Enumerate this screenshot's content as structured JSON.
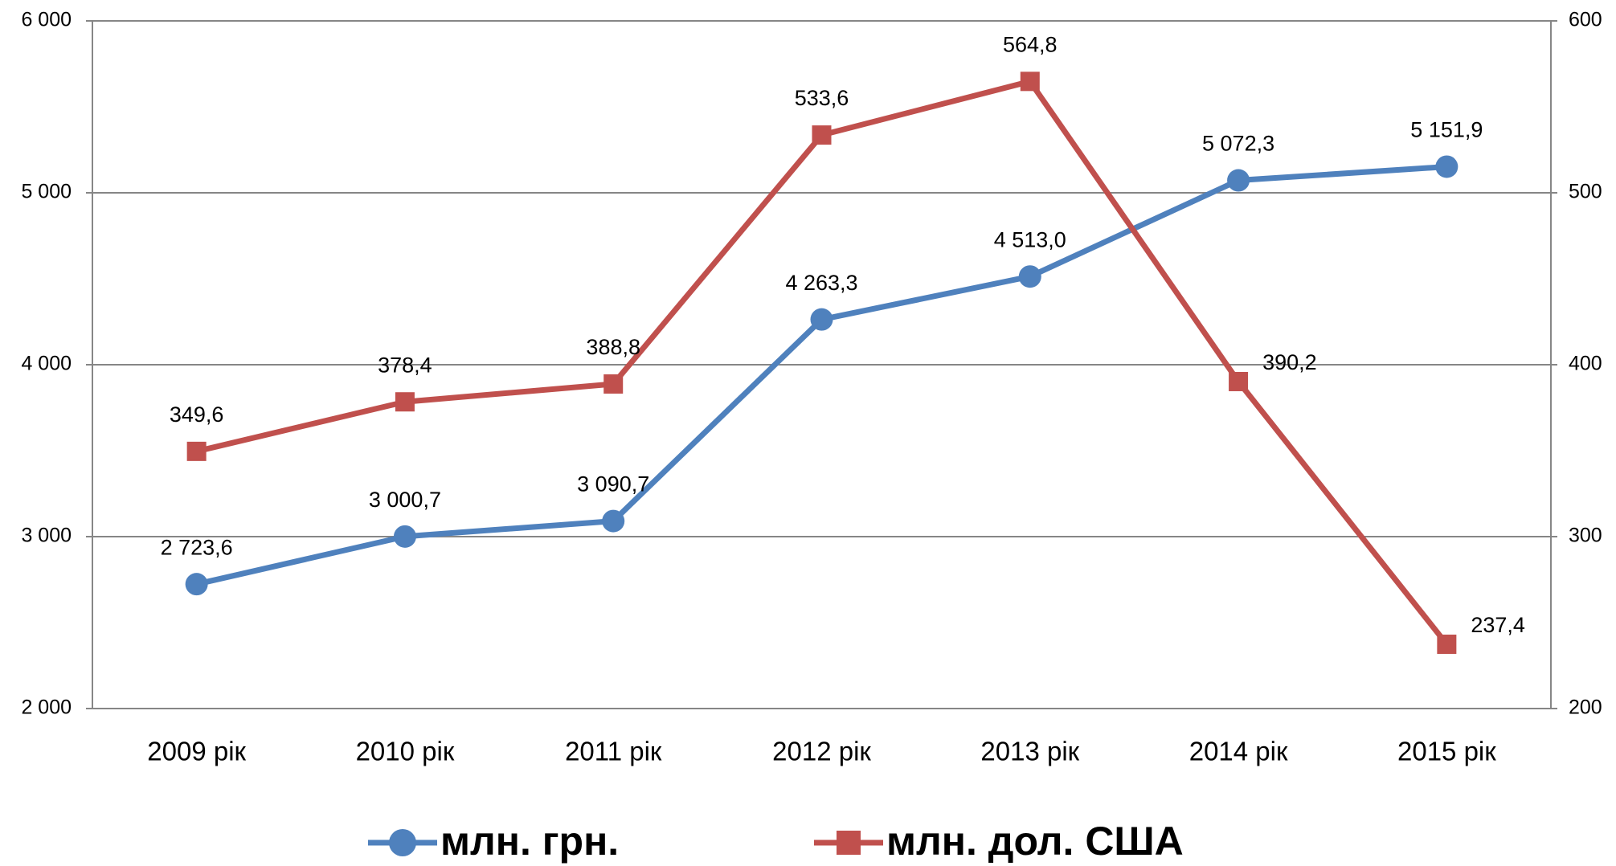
{
  "chart_data": {
    "type": "line",
    "categories": [
      "2009 рік",
      "2010 рік",
      "2011 рік",
      "2012 рік",
      "2013 рік",
      "2014 рік",
      "2015 рік"
    ],
    "series": [
      {
        "name": "млн. грн.",
        "color": "#4f81bd",
        "marker": "circle",
        "values": [
          2723.6,
          3000.7,
          3090.7,
          4263.3,
          4513.0,
          5072.3,
          5151.9
        ],
        "value_labels": [
          "2 723,6",
          "3 000,7",
          "3 090,7",
          "4 263,3",
          "4 513,0",
          "5 072,3",
          "5 151,9"
        ]
      },
      {
        "name": "млн. дол. США",
        "color": "#c0504d",
        "marker": "square",
        "axis": "y2",
        "values": [
          349.6,
          378.4,
          388.8,
          533.6,
          564.8,
          390.2,
          237.4
        ],
        "value_labels": [
          "349,6",
          "378,4",
          "388,8",
          "533,6",
          "564,8",
          "390,2",
          "237,4"
        ]
      }
    ],
    "ylim": [
      2000,
      6000
    ],
    "yticks": [
      {
        "value": 2000,
        "label": "2 000"
      },
      {
        "value": 3000,
        "label": "3 000"
      },
      {
        "value": 4000,
        "label": "4 000"
      },
      {
        "value": 5000,
        "label": "5 000"
      },
      {
        "value": 6000,
        "label": "6 000"
      }
    ],
    "y2lim": [
      200,
      600
    ],
    "y2ticks": [
      200,
      300,
      400,
      500,
      600
    ],
    "grid": true,
    "legend": "bottom"
  }
}
